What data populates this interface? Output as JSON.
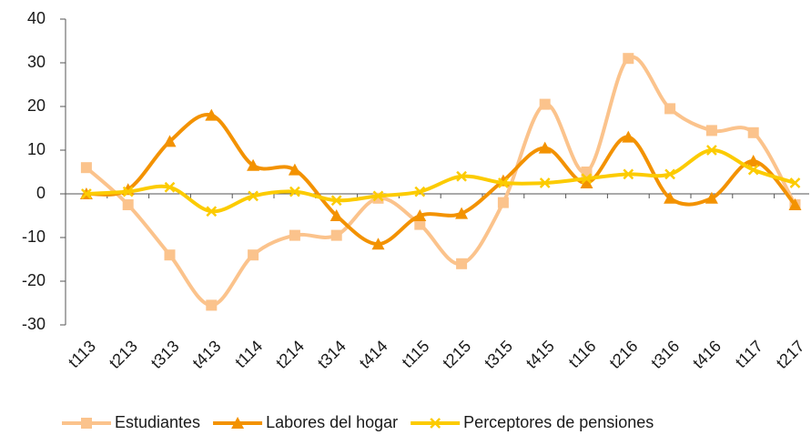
{
  "chart_data": {
    "type": "line",
    "categories": [
      "t113",
      "t213",
      "t313",
      "t413",
      "t114",
      "t214",
      "t314",
      "t414",
      "t115",
      "t215",
      "t315",
      "t415",
      "t116",
      "t216",
      "t316",
      "t416",
      "t117",
      "t217"
    ],
    "series": [
      {
        "name": "Estudiantes",
        "color": "#fbc38c",
        "marker": "square",
        "values": [
          6,
          -2.5,
          -14,
          -25.5,
          -14,
          -9.5,
          -9.5,
          -1,
          -7,
          -16,
          -2,
          20.5,
          5,
          31,
          19.5,
          14.5,
          14,
          -2.5
        ]
      },
      {
        "name": "Labores del hogar",
        "color": "#f39200",
        "marker": "triangle",
        "values": [
          0,
          1,
          12,
          18,
          6.5,
          5.5,
          -5,
          -11.5,
          -5,
          -4.5,
          3,
          10.5,
          2.5,
          13,
          -1,
          -1,
          7.5,
          -2.5
        ]
      },
      {
        "name": "Perceptores de pensiones",
        "color": "#fccb00",
        "marker": "x",
        "values": [
          0,
          0.5,
          1.5,
          -4,
          -0.5,
          0.5,
          -1.5,
          -0.5,
          0.5,
          4,
          2.5,
          2.5,
          3.5,
          4.5,
          4.5,
          10,
          5.5,
          2.5
        ]
      }
    ],
    "ylim": [
      -30,
      40
    ],
    "yticks": [
      -30,
      -20,
      -10,
      0,
      10,
      20,
      30,
      40
    ],
    "smooth": true,
    "legend": "bottom"
  }
}
